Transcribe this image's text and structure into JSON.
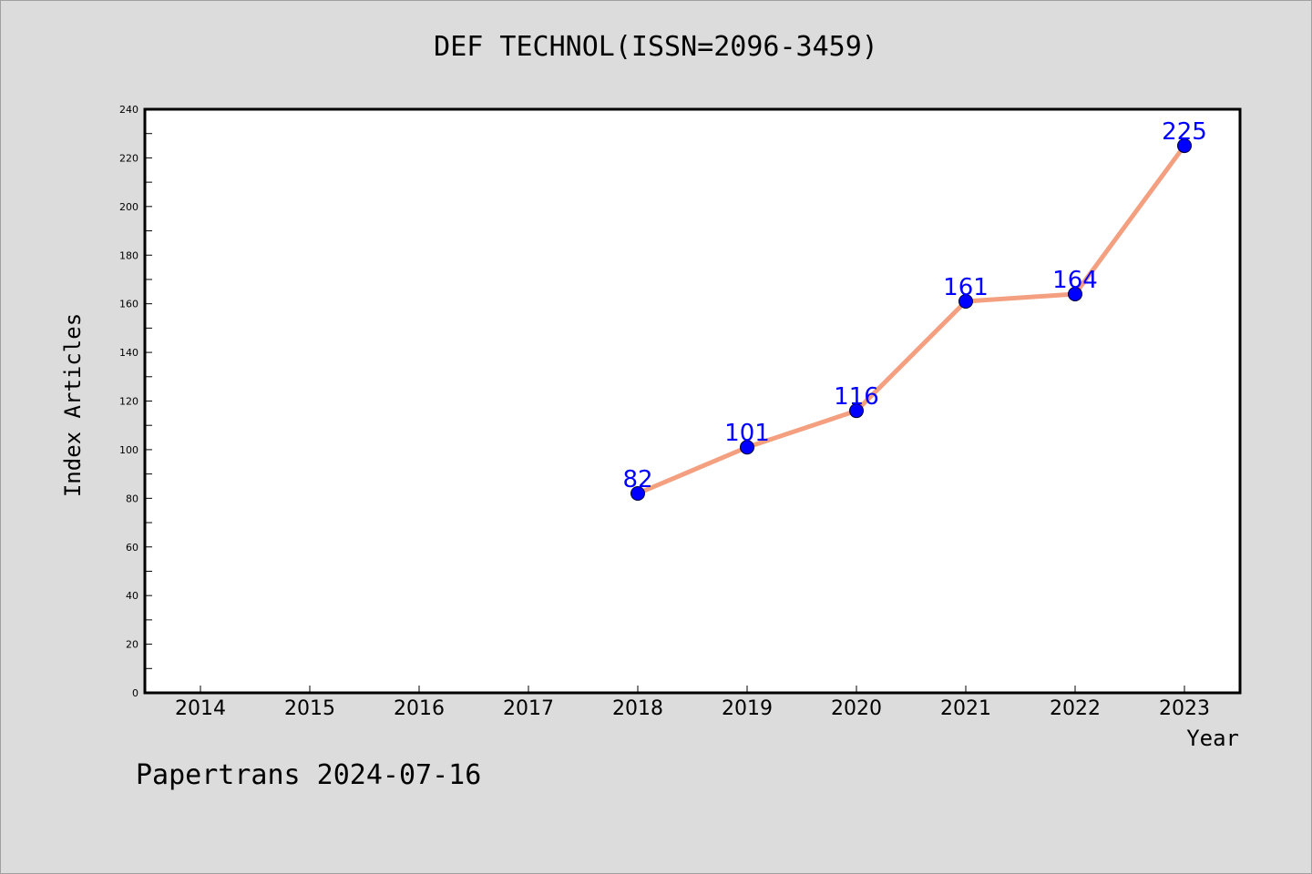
{
  "chart_data": {
    "type": "line",
    "title": "DEF TECHNOL(ISSN=2096-3459)",
    "xlabel": "Year",
    "ylabel": "Index Articles",
    "categories": [
      "2014",
      "2015",
      "2016",
      "2017",
      "2018",
      "2019",
      "2020",
      "2021",
      "2022",
      "2023"
    ],
    "series": [
      {
        "x": [
          "2018",
          "2019",
          "2020",
          "2021",
          "2022",
          "2023"
        ],
        "values": [
          82,
          101,
          116,
          161,
          164,
          225
        ]
      }
    ],
    "ylim": [
      0,
      240
    ],
    "yticks": [
      0,
      20,
      40,
      60,
      80,
      100,
      120,
      140,
      160,
      180,
      200,
      220,
      240
    ],
    "line_color": "#f4a080",
    "marker_color": "#0000ff",
    "label_color": "#0000ff",
    "grid": false
  },
  "footer": "Papertrans 2024-07-16"
}
